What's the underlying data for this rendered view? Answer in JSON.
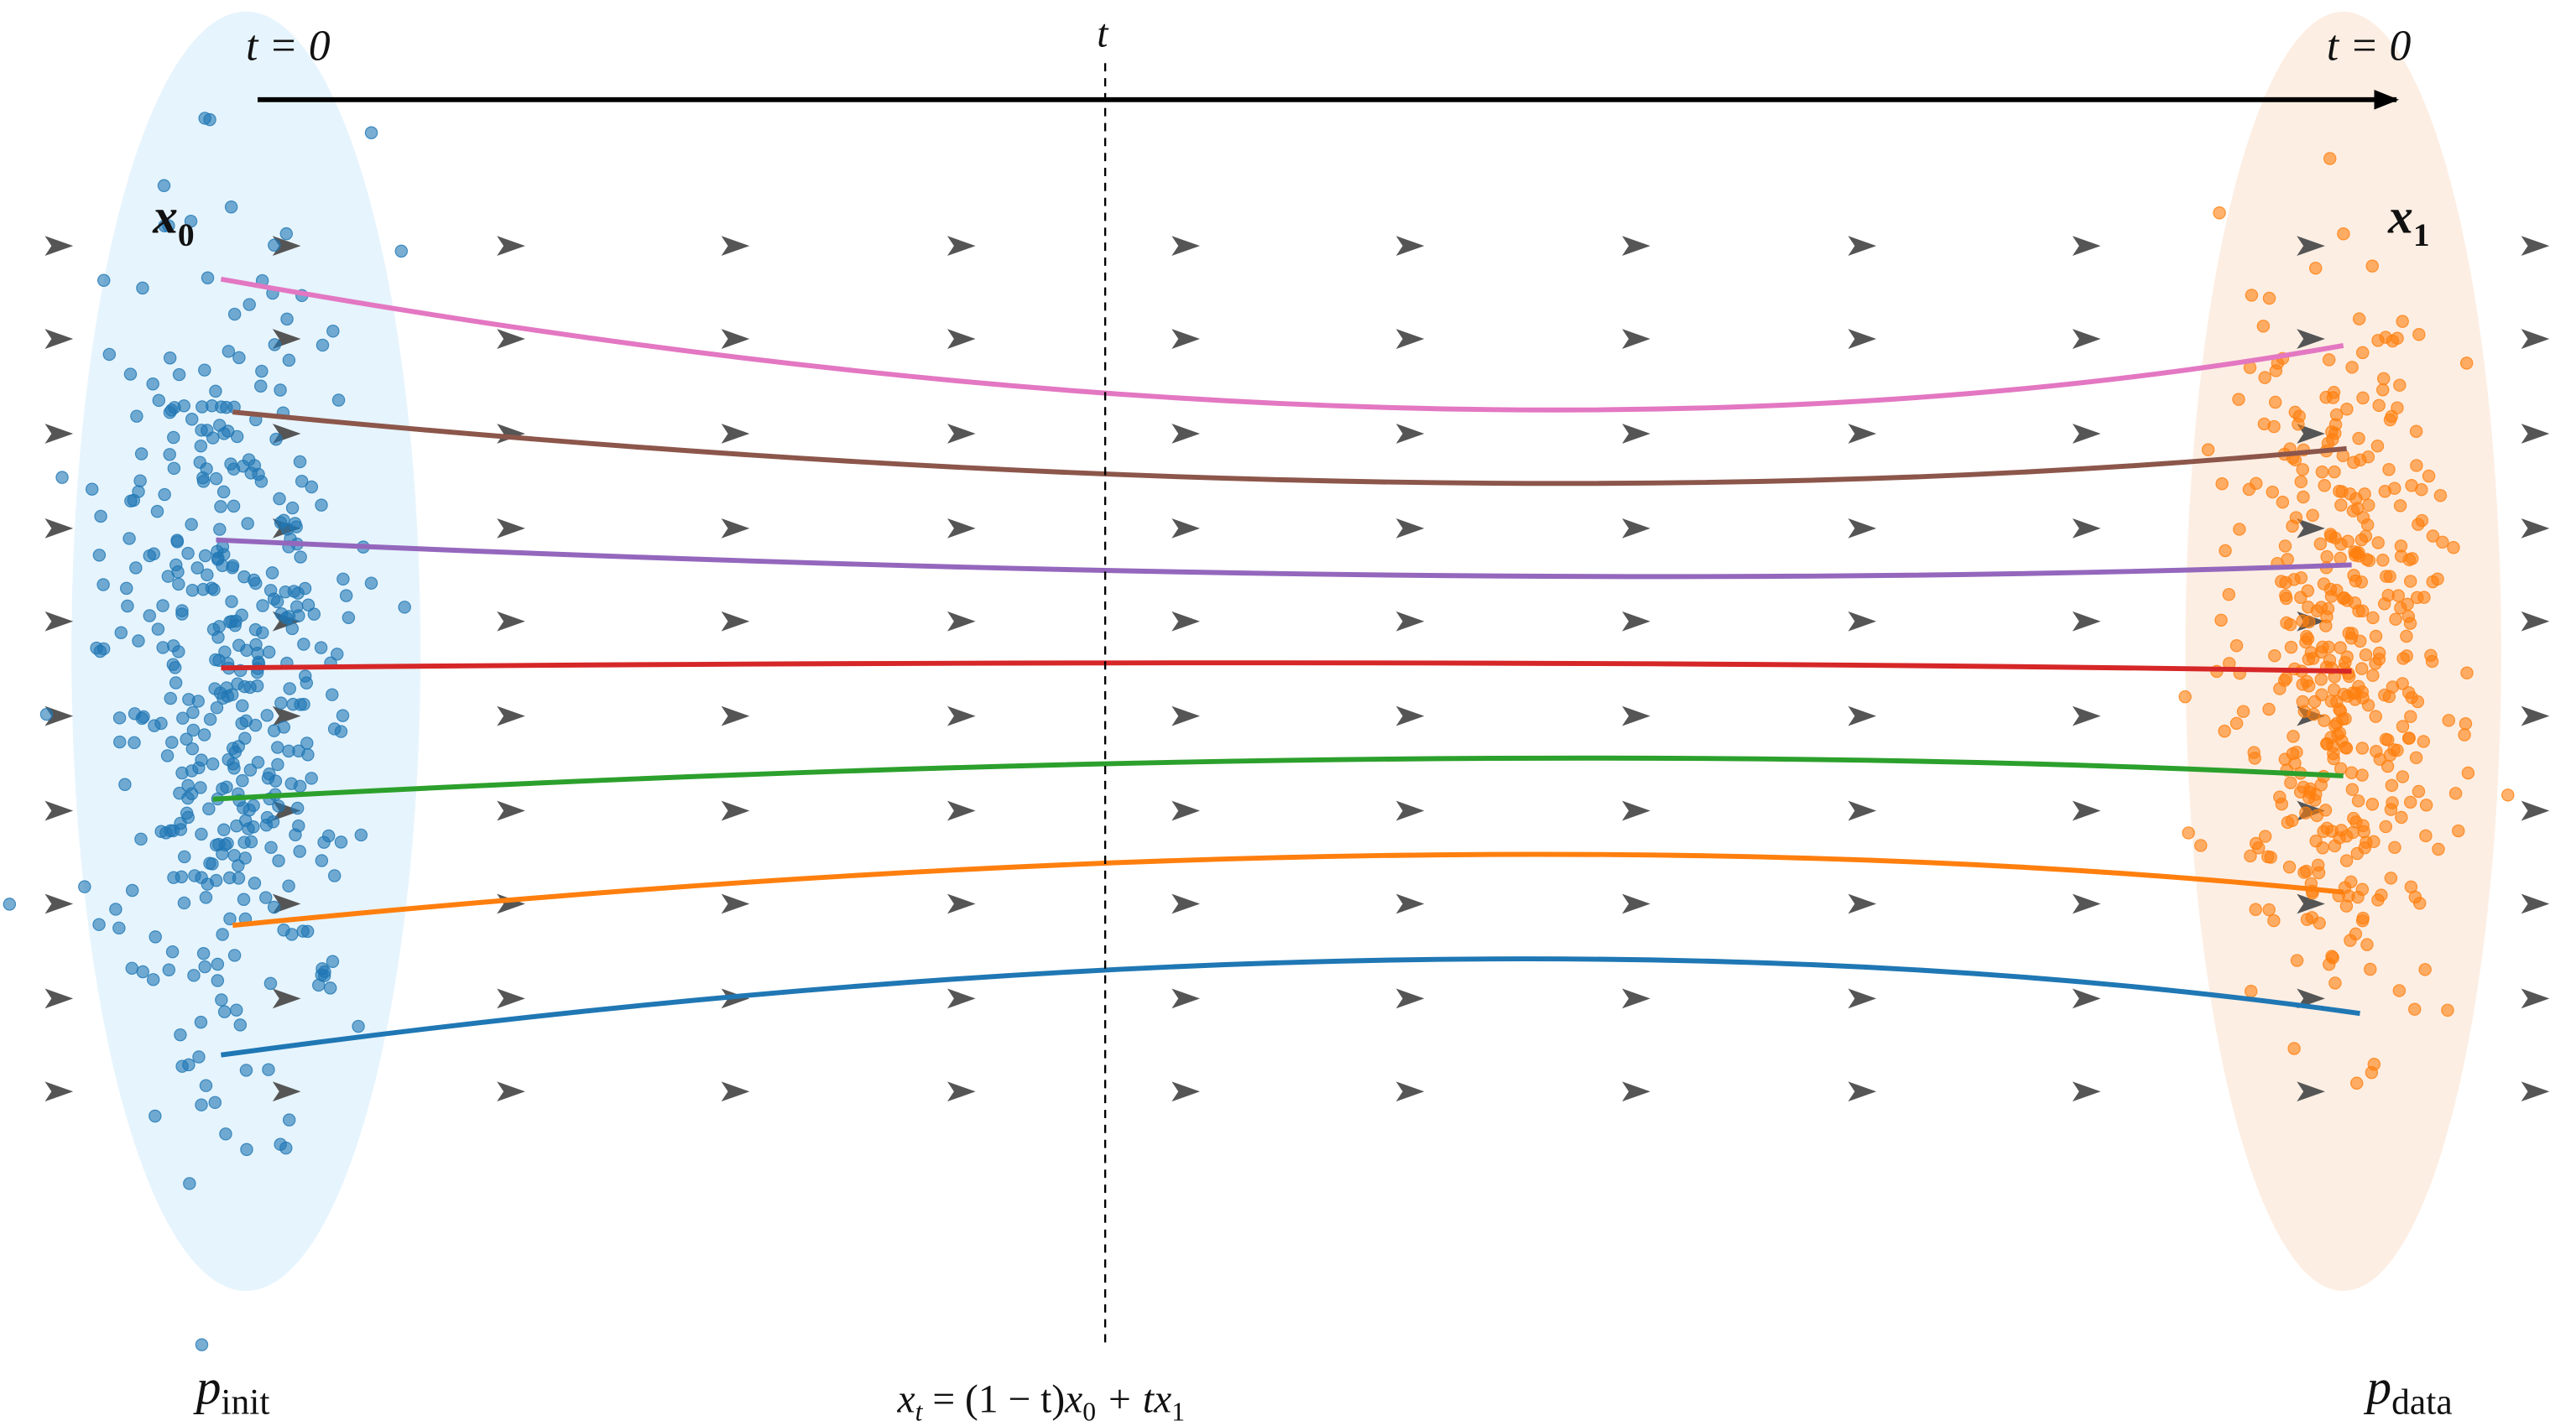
{
  "labels": {
    "t_start": "t = 0",
    "t_mid": "t",
    "t_end": "t = 0",
    "x0": {
      "base": "x",
      "sub": "0"
    },
    "x1": {
      "base": "x",
      "sub": "1"
    },
    "p_init": {
      "base": "p",
      "sub": "init"
    },
    "p_data": {
      "base": "p",
      "sub": "data"
    },
    "formula": {
      "lhs_base": "x",
      "lhs_sub": "t",
      "eq": " = (1 − t)",
      "a_base": "x",
      "a_sub": "0",
      "plus": " + t",
      "b_base": "x",
      "b_sub": "1"
    }
  }
}
